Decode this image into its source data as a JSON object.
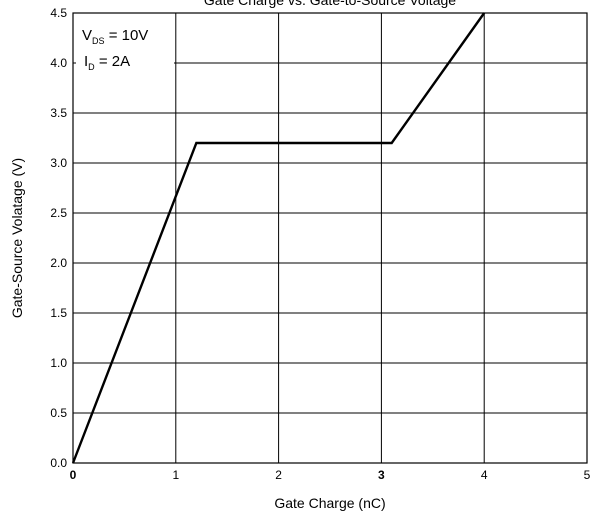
{
  "chart_data": {
    "type": "line",
    "title": "Gate Charge vs. Gate-to-Source Voltage",
    "xlabel": "Gate Charge (nC)",
    "ylabel": "Gate-Source Volatage  (V)",
    "xlim": [
      0,
      5
    ],
    "ylim": [
      0,
      4.5
    ],
    "x_ticks": [
      "0",
      "1",
      "2",
      "3",
      "4",
      "5"
    ],
    "y_ticks": [
      "0.0",
      "0.5",
      "1.0",
      "1.5",
      "2.0",
      "2.5",
      "3.0",
      "3.5",
      "4.0",
      "4.5"
    ],
    "grid": true,
    "series": [
      {
        "x": [
          0,
          1.2,
          3.1,
          4.0
        ],
        "y": [
          0,
          3.2,
          3.2,
          4.5
        ]
      }
    ],
    "annotations": {
      "vds_main": "V",
      "vds_sub": "DS",
      "vds_value": " = 10V",
      "id_main": "I",
      "id_sub": "D",
      "id_value": " = 2A"
    }
  }
}
